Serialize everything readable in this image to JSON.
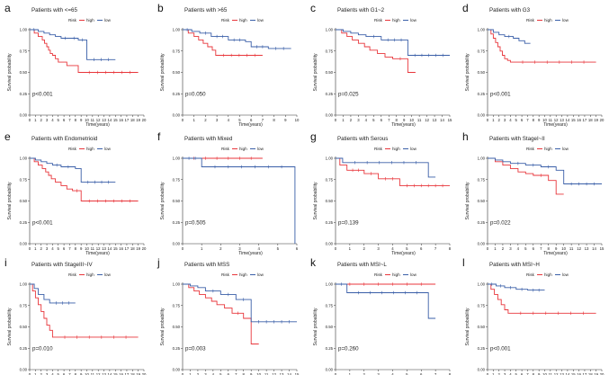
{
  "figure": {
    "legend_title": "Risk",
    "legend_high": "high",
    "legend_low": "low",
    "colors": {
      "high": "#e8363b",
      "low": "#3a5fa8",
      "axis": "#333333",
      "text": "#222222"
    }
  },
  "chart_data": [
    {
      "panel_letter": "a",
      "type": "line",
      "title": "Patients with <=65",
      "xlabel": "Time(years)",
      "ylabel": "Survival probability",
      "xlim": [
        0,
        20
      ],
      "x_ticks": [
        0,
        1,
        2,
        3,
        4,
        5,
        6,
        7,
        8,
        9,
        10,
        11,
        12,
        13,
        14,
        15,
        16,
        17,
        18,
        19,
        20
      ],
      "ylim": [
        0,
        1
      ],
      "y_ticks": [
        "0.00",
        "0.25",
        "0.50",
        "0.75",
        "1.00"
      ],
      "p_value": "p<0.001",
      "series": [
        {
          "name": "high",
          "x": [
            0,
            0.8,
            1.5,
            2.2,
            2.6,
            3.0,
            3.3,
            3.6,
            4.0,
            4.5,
            5.0,
            6.0,
            6.5,
            7.5,
            8.5,
            9.0,
            19.0
          ],
          "y": [
            1,
            0.96,
            0.92,
            0.88,
            0.84,
            0.8,
            0.76,
            0.72,
            0.7,
            0.66,
            0.62,
            0.62,
            0.58,
            0.58,
            0.5,
            0.5,
            0.5
          ]
        },
        {
          "name": "low",
          "x": [
            0,
            1.5,
            2.5,
            3.5,
            4.5,
            5.5,
            7.0,
            8.5,
            10.0,
            15.0
          ],
          "y": [
            1,
            0.98,
            0.96,
            0.94,
            0.92,
            0.9,
            0.9,
            0.88,
            0.65,
            0.65
          ]
        }
      ]
    },
    {
      "panel_letter": "b",
      "type": "line",
      "title": "Patients with >65",
      "xlabel": "Time(years)",
      "ylabel": "Survival probability",
      "xlim": [
        0,
        10
      ],
      "x_ticks": [
        0,
        1,
        2,
        3,
        4,
        5,
        6,
        7,
        8,
        9,
        10
      ],
      "ylim": [
        0,
        1
      ],
      "y_ticks": [
        "0.00",
        "0.25",
        "0.50",
        "0.75",
        "1.00"
      ],
      "p_value": "p=0.050",
      "series": [
        {
          "name": "high",
          "x": [
            0,
            0.5,
            1.0,
            1.4,
            1.8,
            2.2,
            2.6,
            2.9,
            7.0
          ],
          "y": [
            1,
            0.96,
            0.92,
            0.88,
            0.84,
            0.8,
            0.76,
            0.7,
            0.7
          ]
        },
        {
          "name": "low",
          "x": [
            0,
            0.8,
            1.5,
            2.5,
            4.0,
            5.5,
            6.0,
            7.5,
            9.5
          ],
          "y": [
            1,
            0.98,
            0.96,
            0.92,
            0.88,
            0.86,
            0.8,
            0.78,
            0.78
          ]
        }
      ]
    },
    {
      "panel_letter": "c",
      "type": "line",
      "title": "Patients with G1~2",
      "xlabel": "Time(years)",
      "ylabel": "Survival probability",
      "xlim": [
        0,
        15
      ],
      "x_ticks": [
        0,
        1,
        2,
        3,
        4,
        5,
        6,
        7,
        8,
        9,
        10,
        11,
        12,
        13,
        14,
        15
      ],
      "ylim": [
        0,
        1
      ],
      "y_ticks": [
        "0.00",
        "0.25",
        "0.50",
        "0.75",
        "1.00"
      ],
      "p_value": "p=0.025",
      "series": [
        {
          "name": "high",
          "x": [
            0,
            0.8,
            1.5,
            2.2,
            3.0,
            3.8,
            4.5,
            5.5,
            6.5,
            7.5,
            9.5,
            10.5
          ],
          "y": [
            1,
            0.96,
            0.92,
            0.88,
            0.84,
            0.8,
            0.76,
            0.72,
            0.68,
            0.66,
            0.5,
            0.5
          ]
        },
        {
          "name": "low",
          "x": [
            0,
            1.0,
            2.0,
            3.0,
            4.0,
            6.0,
            9.5,
            15.0
          ],
          "y": [
            1,
            0.98,
            0.96,
            0.94,
            0.92,
            0.88,
            0.7,
            0.7
          ]
        }
      ]
    },
    {
      "panel_letter": "d",
      "type": "line",
      "title": "Patients with G3",
      "xlabel": "Time(years)",
      "ylabel": "Survival probability",
      "xlim": [
        0,
        20
      ],
      "x_ticks": [
        0,
        1,
        2,
        3,
        4,
        5,
        6,
        7,
        8,
        9,
        10,
        11,
        12,
        13,
        14,
        15,
        16,
        17,
        18,
        19,
        20
      ],
      "ylim": [
        0,
        1
      ],
      "y_ticks": [
        "0.00",
        "0.25",
        "0.50",
        "0.75",
        "1.00"
      ],
      "p_value": "p<0.001",
      "series": [
        {
          "name": "high",
          "x": [
            0,
            0.6,
            1.0,
            1.4,
            1.8,
            2.2,
            2.6,
            3.0,
            3.5,
            4.0,
            19.0
          ],
          "y": [
            1,
            0.95,
            0.9,
            0.85,
            0.8,
            0.75,
            0.7,
            0.66,
            0.64,
            0.62,
            0.62
          ]
        },
        {
          "name": "low",
          "x": [
            0,
            1.0,
            2.0,
            3.0,
            4.5,
            5.5,
            6.5,
            7.5
          ],
          "y": [
            1,
            0.97,
            0.94,
            0.92,
            0.9,
            0.87,
            0.84,
            0.84
          ]
        }
      ]
    },
    {
      "panel_letter": "e",
      "type": "line",
      "title": "Patients with Endometrioid",
      "xlabel": "Time(years)",
      "ylabel": "Survival probability",
      "xlim": [
        0,
        20
      ],
      "x_ticks": [
        0,
        1,
        2,
        3,
        4,
        5,
        6,
        7,
        8,
        9,
        10,
        11,
        12,
        13,
        14,
        15,
        16,
        17,
        18,
        19,
        20
      ],
      "ylim": [
        0,
        1
      ],
      "y_ticks": [
        "0.00",
        "0.25",
        "0.50",
        "0.75",
        "1.00"
      ],
      "p_value": "p<0.001",
      "series": [
        {
          "name": "high",
          "x": [
            0,
            0.8,
            1.5,
            2.2,
            2.8,
            3.3,
            3.8,
            4.5,
            5.5,
            6.5,
            7.5,
            9.0,
            19.0
          ],
          "y": [
            1,
            0.96,
            0.92,
            0.88,
            0.84,
            0.8,
            0.76,
            0.72,
            0.68,
            0.64,
            0.62,
            0.5,
            0.5
          ]
        },
        {
          "name": "low",
          "x": [
            0,
            1.0,
            2.0,
            3.0,
            4.0,
            5.5,
            8.0,
            9.0,
            15.0
          ],
          "y": [
            1,
            0.98,
            0.96,
            0.94,
            0.92,
            0.9,
            0.88,
            0.72,
            0.72
          ]
        }
      ]
    },
    {
      "panel_letter": "f",
      "type": "line",
      "title": "Patients with Mixed",
      "xlabel": "Time(years)",
      "ylabel": "Survival probability",
      "xlim": [
        0,
        6
      ],
      "x_ticks": [
        0,
        1,
        2,
        3,
        4,
        5,
        6
      ],
      "ylim": [
        0,
        1
      ],
      "y_ticks": [
        "0.00",
        "0.25",
        "0.50",
        "0.75",
        "1.00"
      ],
      "p_value": "p=0.505",
      "series": [
        {
          "name": "high",
          "x": [
            0,
            4.2
          ],
          "y": [
            1,
            1
          ]
        },
        {
          "name": "low",
          "x": [
            0,
            1.0,
            5.9,
            5.9
          ],
          "y": [
            1,
            0.9,
            0.9,
            0
          ]
        }
      ]
    },
    {
      "panel_letter": "g",
      "type": "line",
      "title": "Patients with Serous",
      "xlabel": "Time(years)",
      "ylabel": "Survival probability",
      "xlim": [
        0,
        8
      ],
      "x_ticks": [
        0,
        1,
        2,
        3,
        4,
        5,
        6,
        7,
        8
      ],
      "ylim": [
        0,
        1
      ],
      "y_ticks": [
        "0.00",
        "0.25",
        "0.50",
        "0.75",
        "1.00"
      ],
      "p_value": "p=0.139",
      "series": [
        {
          "name": "high",
          "x": [
            0,
            0.3,
            0.8,
            2.0,
            3.0,
            4.5,
            8.0
          ],
          "y": [
            1,
            0.92,
            0.86,
            0.82,
            0.76,
            0.68,
            0.68
          ]
        },
        {
          "name": "low",
          "x": [
            0,
            0.5,
            6.5,
            7.0
          ],
          "y": [
            1,
            0.95,
            0.78,
            0.78
          ]
        }
      ]
    },
    {
      "panel_letter": "h",
      "type": "line",
      "title": "Patients with StageI~II",
      "xlabel": "Time(years)",
      "ylabel": "Survival probability",
      "xlim": [
        0,
        15
      ],
      "x_ticks": [
        0,
        1,
        2,
        3,
        4,
        5,
        6,
        7,
        8,
        9,
        10,
        11,
        12,
        13,
        14,
        15
      ],
      "ylim": [
        0,
        1
      ],
      "y_ticks": [
        "0.00",
        "0.25",
        "0.50",
        "0.75",
        "1.00"
      ],
      "p_value": "p=0.022",
      "series": [
        {
          "name": "high",
          "x": [
            0,
            1.0,
            2.0,
            3.0,
            4.0,
            5.0,
            6.0,
            8.0,
            9.0,
            10.0
          ],
          "y": [
            1,
            0.96,
            0.92,
            0.88,
            0.84,
            0.82,
            0.8,
            0.74,
            0.58,
            0.58
          ]
        },
        {
          "name": "low",
          "x": [
            0,
            1.0,
            2.0,
            3.0,
            5.0,
            7.0,
            9.0,
            10.0,
            15.0
          ],
          "y": [
            1,
            0.98,
            0.96,
            0.94,
            0.92,
            0.9,
            0.86,
            0.7,
            0.7
          ]
        }
      ]
    },
    {
      "panel_letter": "i",
      "type": "line",
      "title": "Patients with StageIII~IV",
      "xlabel": "Time(years)",
      "ylabel": "Survival probability",
      "xlim": [
        0,
        20
      ],
      "x_ticks": [
        0,
        1,
        2,
        3,
        4,
        5,
        6,
        7,
        8,
        9,
        10,
        11,
        12,
        13,
        14,
        15,
        16,
        17,
        18,
        19,
        20
      ],
      "ylim": [
        0,
        1
      ],
      "y_ticks": [
        "0.00",
        "0.25",
        "0.50",
        "0.75",
        "1.00"
      ],
      "p_value": "p=0.010",
      "series": [
        {
          "name": "high",
          "x": [
            0,
            0.5,
            1.0,
            1.5,
            2.0,
            2.5,
            3.0,
            3.5,
            4.0,
            19.0
          ],
          "y": [
            1,
            0.92,
            0.84,
            0.76,
            0.68,
            0.6,
            0.52,
            0.46,
            0.38,
            0.38
          ]
        },
        {
          "name": "low",
          "x": [
            0,
            0.8,
            1.5,
            2.5,
            3.5,
            8.0
          ],
          "y": [
            1,
            0.95,
            0.88,
            0.82,
            0.78,
            0.78
          ]
        }
      ]
    },
    {
      "panel_letter": "j",
      "type": "line",
      "title": "Patients with MSS",
      "xlabel": "Time(years)",
      "ylabel": "Survival probability",
      "xlim": [
        0,
        15
      ],
      "x_ticks": [
        0,
        1,
        2,
        3,
        4,
        5,
        6,
        7,
        8,
        9,
        10,
        11,
        12,
        13,
        14,
        15
      ],
      "ylim": [
        0,
        1
      ],
      "y_ticks": [
        "0.00",
        "0.25",
        "0.50",
        "0.75",
        "1.00"
      ],
      "p_value": "p=0.003",
      "series": [
        {
          "name": "high",
          "x": [
            0,
            0.8,
            1.5,
            2.2,
            3.0,
            3.8,
            4.5,
            5.5,
            6.5,
            8.0,
            9.0,
            10.0
          ],
          "y": [
            1,
            0.96,
            0.92,
            0.88,
            0.84,
            0.8,
            0.76,
            0.72,
            0.66,
            0.6,
            0.3,
            0.3
          ]
        },
        {
          "name": "low",
          "x": [
            0,
            1.0,
            2.0,
            3.0,
            5.0,
            7.0,
            9.0,
            15.0
          ],
          "y": [
            1,
            0.98,
            0.96,
            0.92,
            0.88,
            0.82,
            0.56,
            0.56
          ]
        }
      ]
    },
    {
      "panel_letter": "k",
      "type": "line",
      "title": "Patients with MSI~L",
      "xlabel": "Time(years)",
      "ylabel": "Survival probability",
      "xlim": [
        0,
        8
      ],
      "x_ticks": [
        0,
        1,
        2,
        3,
        4,
        5,
        6,
        7,
        8
      ],
      "ylim": [
        0,
        1
      ],
      "y_ticks": [
        "0.00",
        "0.25",
        "0.50",
        "0.75",
        "1.00"
      ],
      "p_value": "p=0.260",
      "series": [
        {
          "name": "high",
          "x": [
            0,
            7.0
          ],
          "y": [
            1,
            1
          ]
        },
        {
          "name": "low",
          "x": [
            0,
            0.8,
            6.5,
            7.0
          ],
          "y": [
            1,
            0.9,
            0.6,
            0.6
          ]
        }
      ]
    },
    {
      "panel_letter": "l",
      "type": "line",
      "title": "Patients with MSI~H",
      "xlabel": "Time(years)",
      "ylabel": "Survival probability",
      "xlim": [
        0,
        20
      ],
      "x_ticks": [
        0,
        1,
        2,
        3,
        4,
        5,
        6,
        7,
        8,
        9,
        10,
        11,
        12,
        13,
        14,
        15,
        16,
        17,
        18,
        19,
        20
      ],
      "ylim": [
        0,
        1
      ],
      "y_ticks": [
        "0.00",
        "0.25",
        "0.50",
        "0.75",
        "1.00"
      ],
      "p_value": "p<0.001",
      "series": [
        {
          "name": "high",
          "x": [
            0,
            0.6,
            1.2,
            1.8,
            2.4,
            3.0,
            3.6,
            19.0
          ],
          "y": [
            1,
            0.94,
            0.88,
            0.82,
            0.76,
            0.7,
            0.66,
            0.66
          ]
        },
        {
          "name": "low",
          "x": [
            0,
            1.5,
            3.0,
            5.0,
            7.0,
            10.0
          ],
          "y": [
            1,
            0.98,
            0.96,
            0.94,
            0.93,
            0.93
          ]
        }
      ]
    }
  ]
}
